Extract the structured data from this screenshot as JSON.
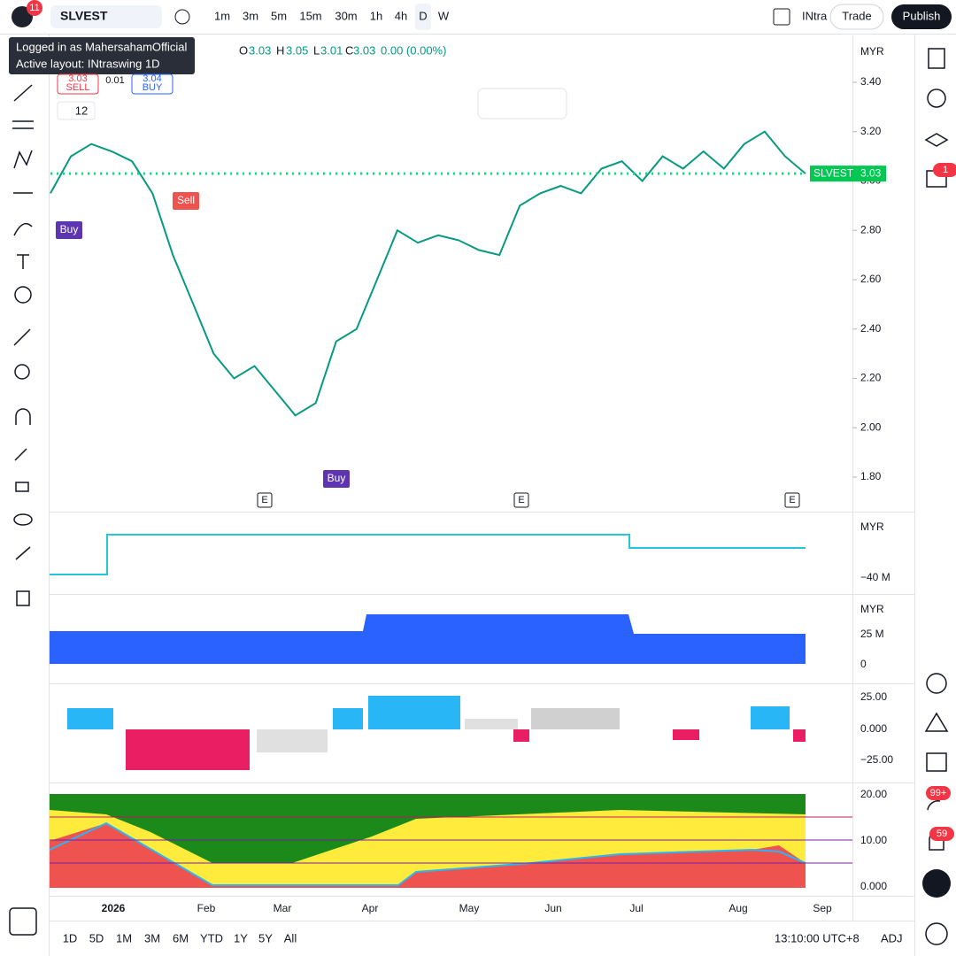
{
  "toolbar": {
    "symbol": "SLVEST",
    "notifications": "11",
    "intervals": [
      "1m",
      "3m",
      "5m",
      "15m",
      "30m",
      "1h",
      "4h",
      "D",
      "W"
    ],
    "layout": "INtra",
    "trade": "Trade",
    "publish": "Publish"
  },
  "tooltip": {
    "user": "Logged in as MahersahamOfficial",
    "layout": "Active layout: INtraswing 1D"
  },
  "legend": {
    "open_label": "O",
    "open": "3.03",
    "high_label": "H",
    "high": "3.05",
    "low_label": "L",
    "low": "3.01",
    "close_label": "C",
    "close": "3.03",
    "change": "0.00 (0.00%)"
  },
  "trade_buttons": {
    "sell_price": "3.03",
    "sell": "SELL",
    "spread": "0.01",
    "buy_price": "3.04",
    "buy": "BUY"
  },
  "indicator_count": "12",
  "chart_data": {
    "type": "line",
    "currency": "MYR",
    "price_tag_name": "SLVEST",
    "price_tag_value": "3.03",
    "categories": [
      null,
      null,
      null,
      null,
      null,
      null,
      null,
      null,
      null,
      null,
      null,
      null,
      null,
      null,
      null,
      null,
      null,
      null,
      null,
      null,
      null,
      null,
      null,
      null,
      null,
      null,
      null,
      null,
      null,
      null,
      null,
      null,
      null,
      null,
      null,
      null,
      null,
      null
    ],
    "series": [
      {
        "name": "SLVEST",
        "color": "#089981",
        "values": [
          2.95,
          3.1,
          3.15,
          3.12,
          3.08,
          2.95,
          2.7,
          2.5,
          2.3,
          2.2,
          2.25,
          2.15,
          2.05,
          2.1,
          2.35,
          2.4,
          2.6,
          2.8,
          2.75,
          2.78,
          2.76,
          2.72,
          2.7,
          2.9,
          2.95,
          2.98,
          2.95,
          3.05,
          3.08,
          3.0,
          3.1,
          3.05,
          3.12,
          3.05,
          3.15,
          3.2,
          3.1,
          3.03
        ]
      }
    ],
    "ylim": [
      1.66,
      3.59
    ],
    "yticks": [
      {
        "value": 3.4,
        "label": "3.40"
      },
      {
        "value": 3.2,
        "label": "3.20"
      },
      {
        "value": 3.0,
        "label": "3.00"
      },
      {
        "value": 2.8,
        "label": "2.80"
      },
      {
        "value": 2.6,
        "label": "2.60"
      },
      {
        "value": 2.4,
        "label": "2.40"
      },
      {
        "value": 2.2,
        "label": "2.20"
      },
      {
        "value": 2.0,
        "label": "2.00"
      },
      {
        "value": 1.8,
        "label": "1.80"
      }
    ],
    "signals": [
      "Buy",
      "Sell",
      "Buy"
    ],
    "earnings": [
      "E",
      "E",
      "E"
    ]
  },
  "panes": [
    {
      "currency": "MYR",
      "ticks": [
        "−40 M"
      ]
    },
    {
      "currency": "MYR",
      "ticks": [
        "25 M",
        "0"
      ]
    },
    {
      "ticks": [
        "25.00",
        "0.000",
        "−25.00"
      ]
    },
    {
      "ticks": [
        "20.00",
        "10.00",
        "0.000"
      ]
    }
  ],
  "x_axis": [
    "2026",
    "Feb",
    "Mar",
    "Apr",
    "May",
    "Jun",
    "Jul",
    "Aug",
    "Sep"
  ],
  "bottom_bar": {
    "ranges": [
      "1D",
      "5D",
      "1M",
      "3M",
      "6M",
      "YTD",
      "1Y",
      "5Y",
      "All"
    ],
    "time": "13:10:00 UTC+8",
    "adjust": "ADJ"
  },
  "sidebar_badges": [
    "1",
    "99+",
    "59"
  ]
}
